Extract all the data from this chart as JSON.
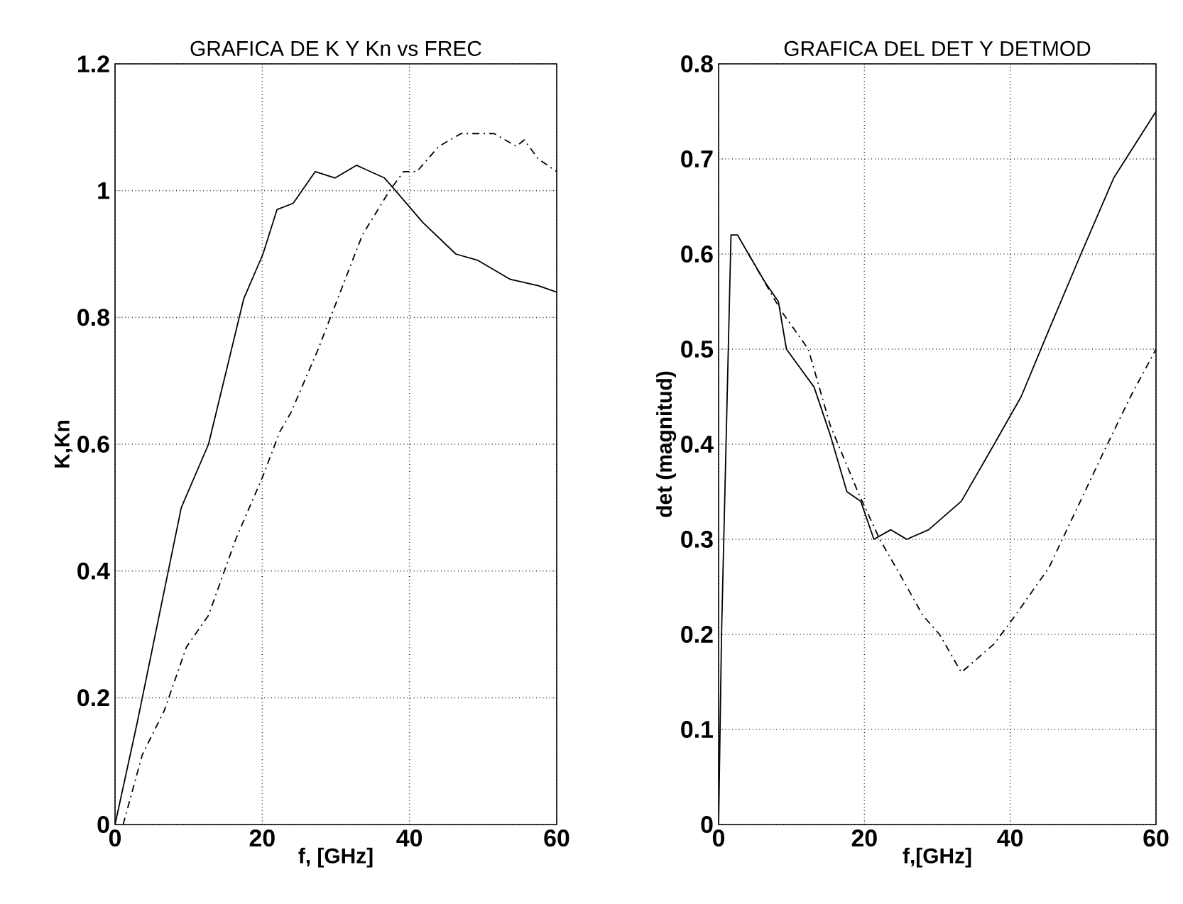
{
  "chart_data": [
    {
      "type": "line",
      "title": "GRAFICA DE K Y Kn vs FREC",
      "xlabel": "f, [GHz]",
      "ylabel": "K,Kn",
      "xlim": [
        0,
        60
      ],
      "ylim": [
        0,
        1.2
      ],
      "xticks": [
        0,
        20,
        40,
        60
      ],
      "yticks": [
        0,
        0.2,
        0.4,
        0.6,
        0.8,
        1,
        1.2
      ],
      "grid": true,
      "series": [
        {
          "color": "#000000",
          "line_style": "solid",
          "x": [
            0,
            3,
            9,
            12.7,
            17.5,
            20.1,
            22,
            24.2,
            27.2,
            29.9,
            32.8,
            36.6,
            38.1,
            41.8,
            46.3,
            49.3,
            53.7,
            57.5,
            60
          ],
          "values": [
            0,
            0.16,
            0.5,
            0.6,
            0.83,
            0.9,
            0.97,
            0.98,
            1.03,
            1.02,
            1.04,
            1.02,
            1.0,
            0.95,
            0.9,
            0.89,
            0.86,
            0.85,
            0.84
          ]
        },
        {
          "color": "#000000",
          "line_style": "dashed",
          "x": [
            1.1,
            3.7,
            6.7,
            9.7,
            12.7,
            16.4,
            20.1,
            22.4,
            23.9,
            27.6,
            30.6,
            33.6,
            37.3,
            39.2,
            41,
            44,
            47,
            51.5,
            54.5,
            55.6,
            57.5,
            60
          ],
          "values": [
            0,
            0.11,
            0.18,
            0.28,
            0.33,
            0.45,
            0.55,
            0.62,
            0.65,
            0.75,
            0.84,
            0.93,
            1.0,
            1.03,
            1.03,
            1.07,
            1.09,
            1.09,
            1.07,
            1.08,
            1.05,
            1.03
          ]
        }
      ]
    },
    {
      "type": "line",
      "title": "GRAFICA DEL DET Y DETMOD",
      "xlabel": "f,[GHz]",
      "ylabel": "det (magnitud)",
      "xlim": [
        0,
        60
      ],
      "ylim": [
        0,
        0.8
      ],
      "xticks": [
        0,
        20,
        40,
        60
      ],
      "yticks": [
        0,
        0.1,
        0.2,
        0.3,
        0.4,
        0.5,
        0.6,
        0.7,
        0.8
      ],
      "grid": true,
      "series": [
        {
          "color": "#000000",
          "line_style": "solid",
          "x": [
            0,
            0.4,
            1.7,
            2.6,
            4.1,
            6.4,
            8.2,
            9.3,
            11.2,
            13.1,
            15.3,
            17.6,
            19.5,
            21.3,
            23.6,
            25.8,
            28.8,
            33.3,
            37.8,
            41.5,
            45.3,
            49.7,
            54.2,
            60
          ],
          "values": [
            0,
            0.2,
            0.62,
            0.62,
            0.6,
            0.57,
            0.55,
            0.5,
            0.48,
            0.46,
            0.41,
            0.35,
            0.34,
            0.3,
            0.31,
            0.3,
            0.31,
            0.34,
            0.4,
            0.45,
            0.52,
            0.6,
            0.68,
            0.75
          ]
        },
        {
          "color": "#000000",
          "line_style": "dashed",
          "x": [
            4.1,
            8.6,
            12.3,
            15.3,
            19.1,
            22.1,
            25.1,
            28,
            30.3,
            33.3,
            37.8,
            40.7,
            45.3,
            49,
            52.7,
            56.5,
            60
          ],
          "values": [
            0.6,
            0.54,
            0.5,
            0.42,
            0.35,
            0.3,
            0.26,
            0.22,
            0.2,
            0.16,
            0.19,
            0.22,
            0.27,
            0.33,
            0.39,
            0.45,
            0.5
          ]
        }
      ]
    }
  ]
}
